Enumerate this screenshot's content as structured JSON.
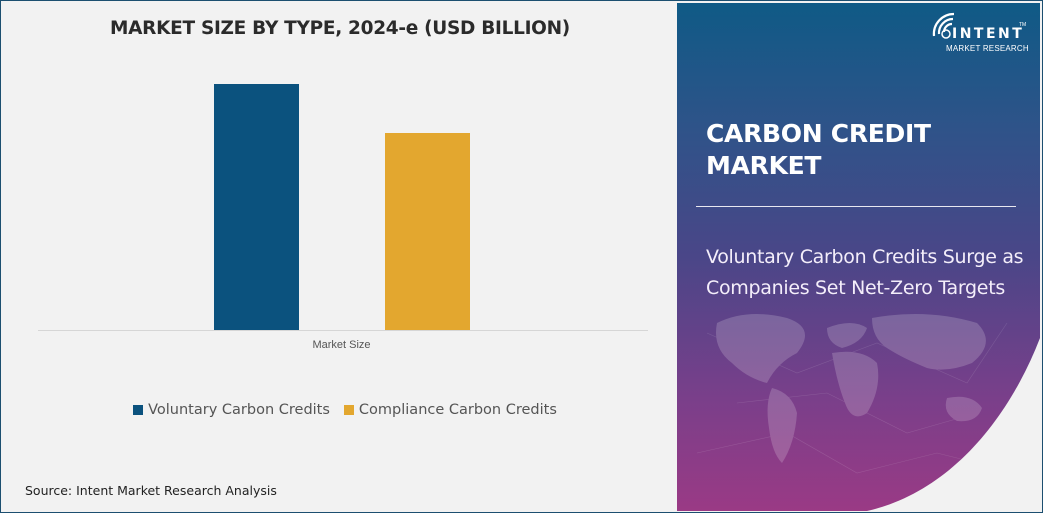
{
  "chart_data": {
    "type": "bar",
    "title": "MARKET SIZE BY TYPE, 2024-e (USD BILLION)",
    "categories": [
      "Market Size"
    ],
    "series": [
      {
        "name": "Voluntary Carbon Credits",
        "color": "#0b527e",
        "values": [
          100
        ]
      },
      {
        "name": "Compliance Carbon Credits",
        "color": "#e3a72f",
        "values": [
          80
        ]
      }
    ],
    "xlabel": "Market Size",
    "ylabel": "",
    "y_axis_visible": false,
    "grid": false,
    "legend_position": "bottom",
    "note": "Values relative (no axis ticks shown); compliance bar ≈ 80% of voluntary bar height"
  },
  "chart": {
    "title": "MARKET SIZE BY TYPE, 2024-e (USD BILLION)",
    "x_label": "Market Size",
    "legend": [
      {
        "label": "Voluntary Carbon Credits",
        "color": "#0b527e"
      },
      {
        "label": "Compliance Carbon Credits",
        "color": "#e3a72f"
      }
    ],
    "source": "Source: Intent Market Research Analysis"
  },
  "side_panel": {
    "logo": {
      "name": "INTENT",
      "sub": "MARKET RESEARCH",
      "tm": "TM"
    },
    "market_title": "CARBON CREDIT MARKET",
    "headline": "Voluntary Carbon Credits Surge as Companies Set Net-Zero Targets"
  }
}
